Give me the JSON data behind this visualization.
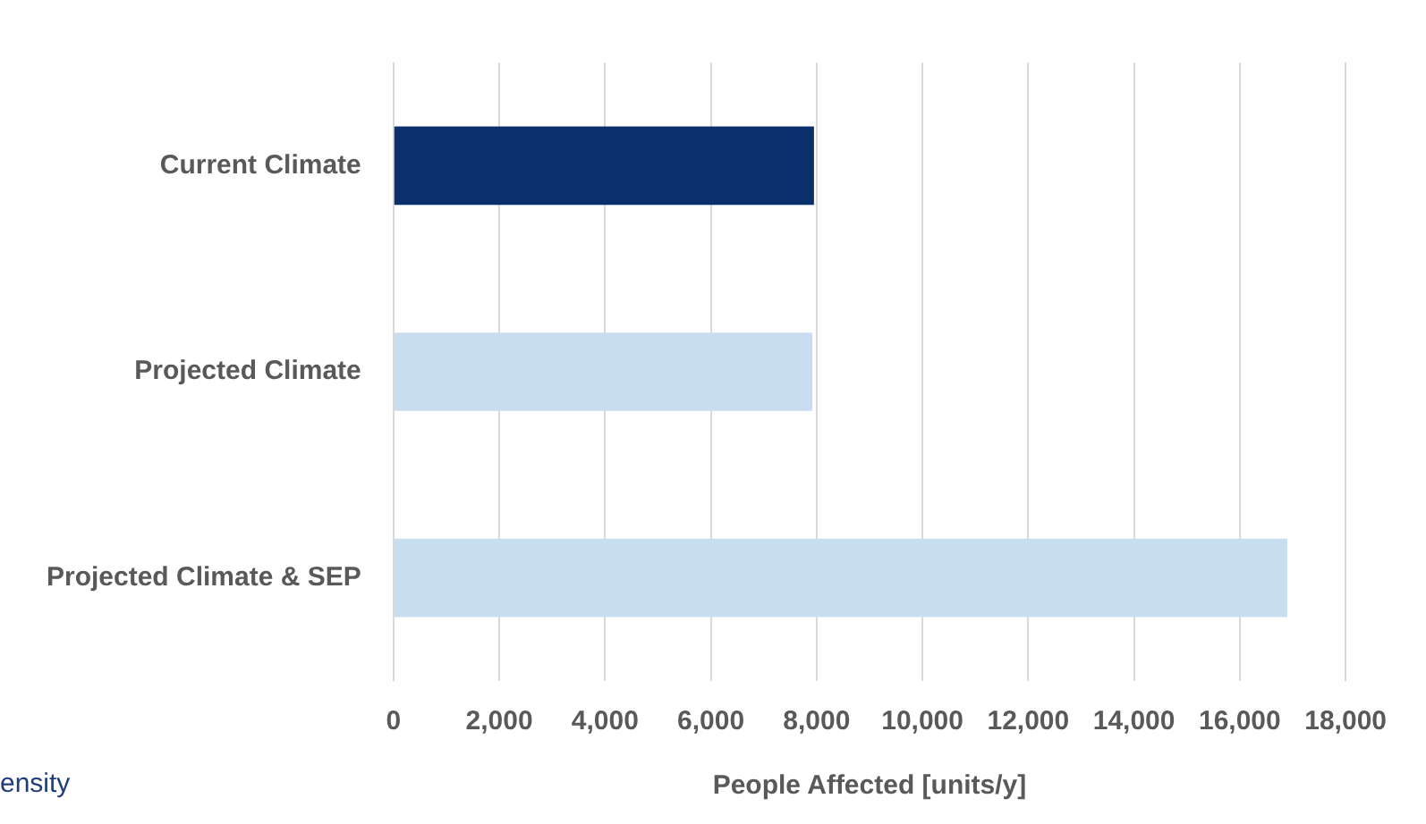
{
  "chart_data": {
    "type": "bar",
    "orientation": "horizontal",
    "categories": [
      "Current Climate",
      "Projected Climate",
      "Projected Climate & SEP"
    ],
    "values": [
      7950,
      7920,
      16900
    ],
    "colors": [
      "#0a2f6b",
      "#c9ddf0",
      "#c9ddf0"
    ],
    "xlabel": "People Affected [units/y]",
    "xlim": [
      0,
      18000
    ],
    "xticks": [
      0,
      {
        "value": 2000,
        "label": "2,000"
      },
      {
        "value": 4000,
        "label": "4,000"
      },
      {
        "value": 6000,
        "label": "6,000"
      },
      {
        "value": 8000,
        "label": "8,000"
      },
      {
        "value": 10000,
        "label": "10,000"
      },
      {
        "value": 12000,
        "label": "12,000"
      },
      {
        "value": 14000,
        "label": "14,000"
      },
      {
        "value": 16000,
        "label": "16,000"
      },
      {
        "value": 18000,
        "label": "18,000"
      }
    ],
    "grid": "x",
    "annotations": [
      "ensity"
    ]
  }
}
